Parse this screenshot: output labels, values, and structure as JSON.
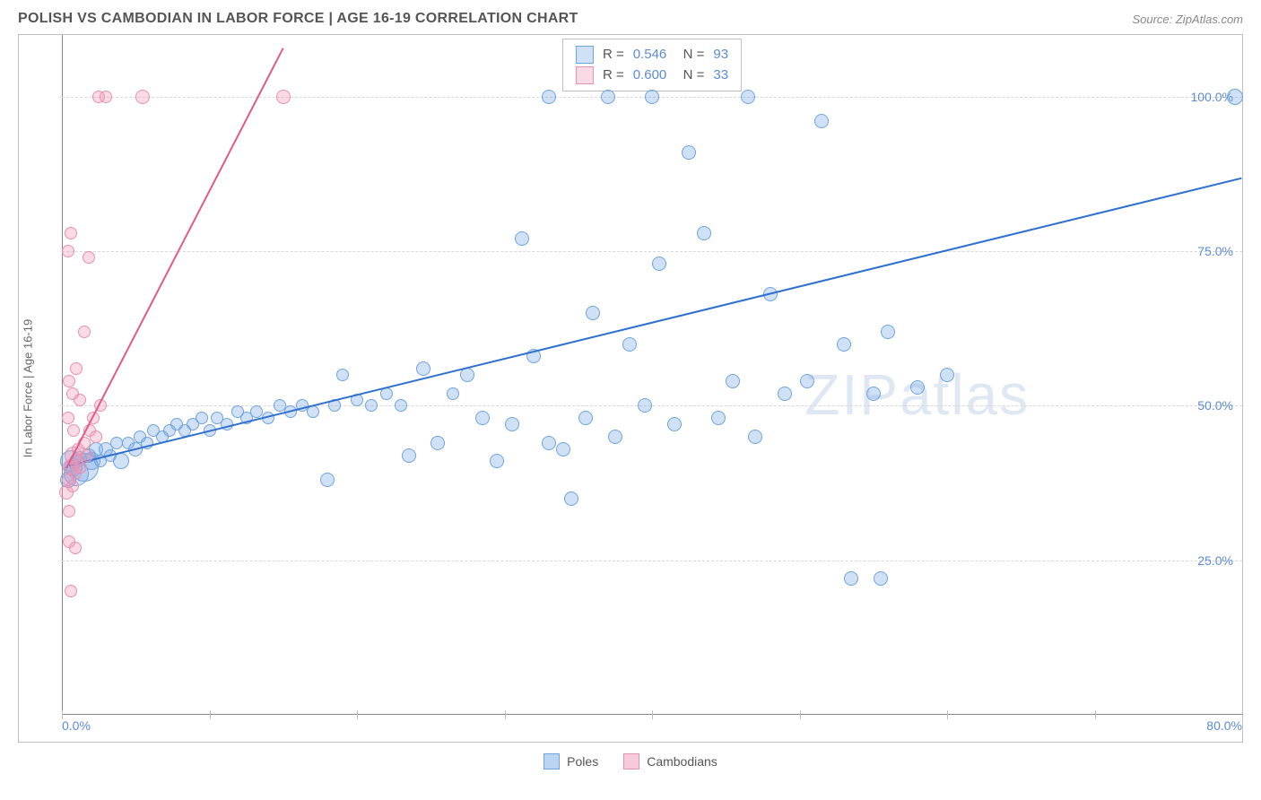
{
  "header": {
    "title": "POLISH VS CAMBODIAN IN LABOR FORCE | AGE 16-19 CORRELATION CHART",
    "source": "Source: ZipAtlas.com"
  },
  "chart": {
    "type": "scatter",
    "y_axis_label": "In Labor Force | Age 16-19",
    "xlim": [
      0,
      80
    ],
    "ylim": [
      0,
      110
    ],
    "x_ticks": [
      0,
      10,
      20,
      30,
      40,
      50,
      60,
      70,
      80
    ],
    "x_tick_labels": {
      "0": "0.0%",
      "80": "80.0%"
    },
    "y_ticks": [
      25,
      50,
      75,
      100
    ],
    "y_tick_labels": {
      "25": "25.0%",
      "50": "50.0%",
      "75": "75.0%",
      "100": "100.0%"
    },
    "background_color": "#ffffff",
    "grid_color": "#d8d8d8",
    "axis_color": "#888888",
    "tick_label_color": "#5b8ad6",
    "watermark": "ZIPatlas",
    "series": [
      {
        "name": "Poles",
        "fill_color": "rgba(120,170,230,0.35)",
        "stroke_color": "#6fa3dd",
        "line_color": "#2f6fd0",
        "R": "0.546",
        "N": "93",
        "trend": {
          "x1": 0.5,
          "y1": 40.5,
          "x2": 80,
          "y2": 87
        },
        "points": [
          {
            "x": 0.4,
            "y": 38,
            "r": 9
          },
          {
            "x": 0.6,
            "y": 41,
            "r": 12
          },
          {
            "x": 0.8,
            "y": 40,
            "r": 10
          },
          {
            "x": 1.0,
            "y": 39,
            "r": 14
          },
          {
            "x": 1.2,
            "y": 41.5,
            "r": 8
          },
          {
            "x": 1.5,
            "y": 40,
            "r": 16
          },
          {
            "x": 1.8,
            "y": 42,
            "r": 8
          },
          {
            "x": 2.0,
            "y": 41,
            "r": 10
          },
          {
            "x": 2.3,
            "y": 43,
            "r": 8
          },
          {
            "x": 2.6,
            "y": 41,
            "r": 7
          },
          {
            "x": 3.0,
            "y": 43,
            "r": 8
          },
          {
            "x": 3.3,
            "y": 42,
            "r": 7
          },
          {
            "x": 3.7,
            "y": 44,
            "r": 7
          },
          {
            "x": 4.0,
            "y": 41,
            "r": 9
          },
          {
            "x": 4.5,
            "y": 44,
            "r": 7
          },
          {
            "x": 5.0,
            "y": 43,
            "r": 8
          },
          {
            "x": 5.3,
            "y": 45,
            "r": 7
          },
          {
            "x": 5.8,
            "y": 44,
            "r": 7
          },
          {
            "x": 6.2,
            "y": 46,
            "r": 7
          },
          {
            "x": 6.8,
            "y": 45,
            "r": 7
          },
          {
            "x": 7.3,
            "y": 46,
            "r": 7
          },
          {
            "x": 7.8,
            "y": 47,
            "r": 7
          },
          {
            "x": 8.3,
            "y": 46,
            "r": 7
          },
          {
            "x": 8.9,
            "y": 47,
            "r": 7
          },
          {
            "x": 9.5,
            "y": 48,
            "r": 7
          },
          {
            "x": 10.0,
            "y": 46,
            "r": 7
          },
          {
            "x": 10.5,
            "y": 48,
            "r": 7
          },
          {
            "x": 11.2,
            "y": 47,
            "r": 7
          },
          {
            "x": 11.9,
            "y": 49,
            "r": 7
          },
          {
            "x": 12.5,
            "y": 48,
            "r": 7
          },
          {
            "x": 13.2,
            "y": 49,
            "r": 7
          },
          {
            "x": 14.0,
            "y": 48,
            "r": 7
          },
          {
            "x": 14.8,
            "y": 50,
            "r": 7
          },
          {
            "x": 15.5,
            "y": 49,
            "r": 7
          },
          {
            "x": 16.3,
            "y": 50,
            "r": 7
          },
          {
            "x": 17.0,
            "y": 49,
            "r": 7
          },
          {
            "x": 18.0,
            "y": 38,
            "r": 8
          },
          {
            "x": 18.5,
            "y": 50,
            "r": 7
          },
          {
            "x": 19.0,
            "y": 55,
            "r": 7
          },
          {
            "x": 20.0,
            "y": 51,
            "r": 7
          },
          {
            "x": 21.0,
            "y": 50,
            "r": 7
          },
          {
            "x": 22.0,
            "y": 52,
            "r": 7
          },
          {
            "x": 23.0,
            "y": 50,
            "r": 7
          },
          {
            "x": 23.5,
            "y": 42,
            "r": 8
          },
          {
            "x": 24.5,
            "y": 56,
            "r": 8
          },
          {
            "x": 25.5,
            "y": 44,
            "r": 8
          },
          {
            "x": 26.5,
            "y": 52,
            "r": 7
          },
          {
            "x": 27.5,
            "y": 55,
            "r": 8
          },
          {
            "x": 28.5,
            "y": 48,
            "r": 8
          },
          {
            "x": 29.5,
            "y": 41,
            "r": 8
          },
          {
            "x": 30.5,
            "y": 47,
            "r": 8
          },
          {
            "x": 31.2,
            "y": 77,
            "r": 8
          },
          {
            "x": 32.0,
            "y": 58,
            "r": 8
          },
          {
            "x": 33.0,
            "y": 44,
            "r": 8
          },
          {
            "x": 33.0,
            "y": 100,
            "r": 8
          },
          {
            "x": 34.0,
            "y": 43,
            "r": 8
          },
          {
            "x": 34.5,
            "y": 35,
            "r": 8
          },
          {
            "x": 35.5,
            "y": 48,
            "r": 8
          },
          {
            "x": 36.0,
            "y": 65,
            "r": 8
          },
          {
            "x": 37.0,
            "y": 100,
            "r": 8
          },
          {
            "x": 37.5,
            "y": 45,
            "r": 8
          },
          {
            "x": 38.5,
            "y": 60,
            "r": 8
          },
          {
            "x": 39.5,
            "y": 50,
            "r": 8
          },
          {
            "x": 40.0,
            "y": 100,
            "r": 8
          },
          {
            "x": 40.5,
            "y": 73,
            "r": 8
          },
          {
            "x": 41.5,
            "y": 47,
            "r": 8
          },
          {
            "x": 42.5,
            "y": 91,
            "r": 8
          },
          {
            "x": 43.5,
            "y": 78,
            "r": 8
          },
          {
            "x": 44.5,
            "y": 48,
            "r": 8
          },
          {
            "x": 45.5,
            "y": 54,
            "r": 8
          },
          {
            "x": 46.5,
            "y": 100,
            "r": 8
          },
          {
            "x": 47.0,
            "y": 45,
            "r": 8
          },
          {
            "x": 48.0,
            "y": 68,
            "r": 8
          },
          {
            "x": 49.0,
            "y": 52,
            "r": 8
          },
          {
            "x": 50.5,
            "y": 54,
            "r": 8
          },
          {
            "x": 51.5,
            "y": 96,
            "r": 8
          },
          {
            "x": 53.0,
            "y": 60,
            "r": 8
          },
          {
            "x": 53.5,
            "y": 22,
            "r": 8
          },
          {
            "x": 55.0,
            "y": 52,
            "r": 8
          },
          {
            "x": 55.5,
            "y": 22,
            "r": 8
          },
          {
            "x": 56.0,
            "y": 62,
            "r": 8
          },
          {
            "x": 58.0,
            "y": 53,
            "r": 8
          },
          {
            "x": 60.0,
            "y": 55,
            "r": 8
          },
          {
            "x": 79.5,
            "y": 100,
            "r": 9
          }
        ]
      },
      {
        "name": "Cambodians",
        "fill_color": "rgba(240,150,180,0.35)",
        "stroke_color": "#e890b0",
        "line_color": "#e05a8a",
        "R": "0.600",
        "N": "33",
        "trend": {
          "x1": 0.3,
          "y1": 40,
          "x2": 15,
          "y2": 108
        },
        "points": [
          {
            "x": 0.3,
            "y": 36,
            "r": 8
          },
          {
            "x": 0.4,
            "y": 38,
            "r": 7
          },
          {
            "x": 0.5,
            "y": 33,
            "r": 7
          },
          {
            "x": 0.6,
            "y": 40,
            "r": 9
          },
          {
            "x": 0.7,
            "y": 37,
            "r": 7
          },
          {
            "x": 0.8,
            "y": 42,
            "r": 10
          },
          {
            "x": 0.9,
            "y": 39,
            "r": 7
          },
          {
            "x": 1.0,
            "y": 41,
            "r": 8
          },
          {
            "x": 1.1,
            "y": 43,
            "r": 7
          },
          {
            "x": 1.3,
            "y": 40,
            "r": 7
          },
          {
            "x": 1.5,
            "y": 44,
            "r": 7
          },
          {
            "x": 1.7,
            "y": 42,
            "r": 7
          },
          {
            "x": 1.9,
            "y": 46,
            "r": 7
          },
          {
            "x": 2.1,
            "y": 48,
            "r": 7
          },
          {
            "x": 2.3,
            "y": 45,
            "r": 7
          },
          {
            "x": 2.6,
            "y": 50,
            "r": 7
          },
          {
            "x": 0.5,
            "y": 54,
            "r": 7
          },
          {
            "x": 0.7,
            "y": 52,
            "r": 7
          },
          {
            "x": 1.0,
            "y": 56,
            "r": 7
          },
          {
            "x": 1.5,
            "y": 62,
            "r": 7
          },
          {
            "x": 0.4,
            "y": 75,
            "r": 7
          },
          {
            "x": 0.6,
            "y": 78,
            "r": 7
          },
          {
            "x": 1.8,
            "y": 74,
            "r": 7
          },
          {
            "x": 0.5,
            "y": 28,
            "r": 7
          },
          {
            "x": 0.9,
            "y": 27,
            "r": 7
          },
          {
            "x": 0.6,
            "y": 20,
            "r": 7
          },
          {
            "x": 2.5,
            "y": 100,
            "r": 7
          },
          {
            "x": 3.0,
            "y": 100,
            "r": 7
          },
          {
            "x": 5.5,
            "y": 100,
            "r": 8
          },
          {
            "x": 15.0,
            "y": 100,
            "r": 8
          },
          {
            "x": 0.4,
            "y": 48,
            "r": 7
          },
          {
            "x": 1.2,
            "y": 51,
            "r": 7
          },
          {
            "x": 0.8,
            "y": 46,
            "r": 7
          }
        ]
      }
    ],
    "bottom_legend": [
      {
        "label": "Poles",
        "fill": "rgba(120,170,230,0.5)",
        "stroke": "#6fa3dd"
      },
      {
        "label": "Cambodians",
        "fill": "rgba(240,150,180,0.5)",
        "stroke": "#e890b0"
      }
    ]
  }
}
